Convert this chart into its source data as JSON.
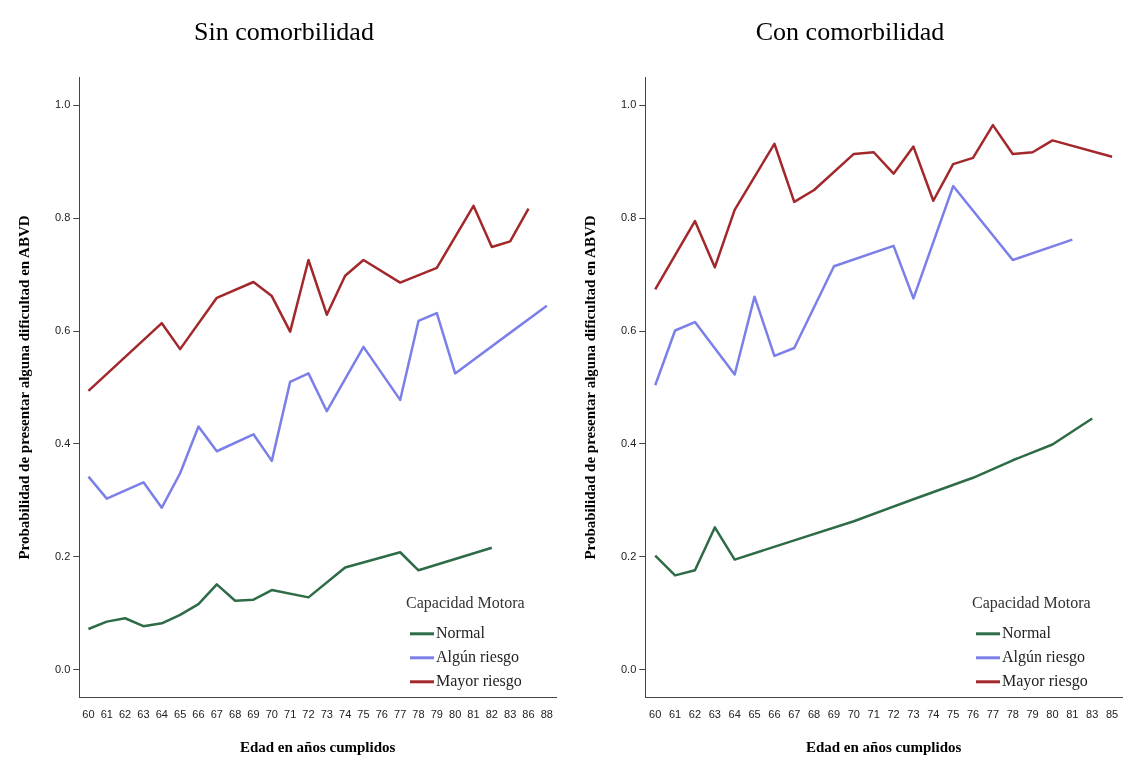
{
  "chart_data": [
    {
      "type": "line",
      "title": "Sin comorbilidad",
      "xlabel": "Edad en años cumplidos",
      "ylabel": "Probabilidad de presentar alguna dificultad en ABVD",
      "legend_title": "Capacidad Motora",
      "legend": "bottom right",
      "grid": false,
      "marker": "none",
      "categories": [
        "60",
        "61",
        "62",
        "63",
        "64",
        "65",
        "66",
        "67",
        "68",
        "69",
        "70",
        "71",
        "72",
        "73",
        "74",
        "75",
        "76",
        "77",
        "78",
        "79",
        "80",
        "81",
        "82",
        "83",
        "86",
        "88"
      ],
      "ylim": [
        -0.05,
        1.05
      ],
      "yticks": [
        {
          "value": 0,
          "label": "0.0"
        },
        {
          "value": 0.2,
          "label": "0.2"
        },
        {
          "value": 0.4,
          "label": "0.4"
        },
        {
          "value": 0.6,
          "label": "0.6"
        },
        {
          "value": 0.8,
          "label": "0.8"
        },
        {
          "value": 1,
          "label": "1.0"
        }
      ],
      "series": [
        {
          "name": "Normal",
          "color": "#2e6b47",
          "values": [
            0.072,
            0.085,
            0.091,
            0.077,
            0.082,
            0.097,
            0.116,
            0.151,
            0.122,
            0.124,
            0.141,
            null,
            0.128,
            null,
            0.181,
            null,
            null,
            0.208,
            0.176,
            null,
            null,
            null,
            0.216,
            null,
            null,
            null
          ]
        },
        {
          "name": "Algún riesgo",
          "color": "#7b7fe8",
          "values": [
            0.342,
            0.303,
            null,
            0.332,
            0.287,
            0.348,
            0.431,
            0.387,
            null,
            0.417,
            0.37,
            0.51,
            0.525,
            0.458,
            null,
            0.572,
            null,
            0.478,
            0.618,
            0.632,
            0.525,
            null,
            null,
            null,
            null,
            0.645
          ]
        },
        {
          "name": "Mayor riesgo",
          "color": "#a3282c",
          "values": [
            0.494,
            null,
            null,
            null,
            0.614,
            0.568,
            null,
            0.659,
            null,
            0.687,
            0.662,
            0.599,
            0.726,
            0.629,
            0.698,
            0.726,
            null,
            0.686,
            null,
            0.712,
            null,
            0.822,
            0.749,
            0.759,
            0.817,
            null
          ]
        }
      ]
    },
    {
      "type": "line",
      "title": "Con comorbilidad",
      "xlabel": "Edad en años cumplidos",
      "ylabel": "Probabilidad de presentar alguna dificultad en ABVD",
      "legend_title": "Capacidad Motora",
      "legend": "bottom right",
      "grid": false,
      "marker": "none",
      "categories": [
        "60",
        "61",
        "62",
        "63",
        "64",
        "65",
        "66",
        "67",
        "68",
        "69",
        "70",
        "71",
        "72",
        "73",
        "74",
        "75",
        "76",
        "77",
        "78",
        "79",
        "80",
        "81",
        "83",
        "85"
      ],
      "ylim": [
        -0.05,
        1.05
      ],
      "yticks": [
        {
          "value": 0,
          "label": "0.0"
        },
        {
          "value": 0.2,
          "label": "0.2"
        },
        {
          "value": 0.4,
          "label": "0.4"
        },
        {
          "value": 0.6,
          "label": "0.6"
        },
        {
          "value": 0.8,
          "label": "0.8"
        },
        {
          "value": 1,
          "label": "1.0"
        }
      ],
      "series": [
        {
          "name": "Normal",
          "color": "#2e6b47",
          "values": [
            0.202,
            0.167,
            0.176,
            0.252,
            0.195,
            null,
            null,
            0.229,
            null,
            null,
            0.263,
            null,
            null,
            0.302,
            null,
            null,
            0.34,
            null,
            0.371,
            null,
            0.399,
            null,
            0.445,
            null
          ]
        },
        {
          "name": "Algún riesgo",
          "color": "#7b7fe8",
          "values": [
            0.504,
            0.601,
            0.616,
            null,
            0.523,
            0.661,
            0.556,
            0.57,
            null,
            0.715,
            null,
            null,
            0.751,
            0.658,
            null,
            0.857,
            null,
            null,
            0.726,
            null,
            null,
            0.762,
            null,
            null
          ]
        },
        {
          "name": "Mayor riesgo",
          "color": "#a3282c",
          "values": [
            0.674,
            null,
            0.795,
            0.713,
            0.815,
            null,
            0.932,
            0.829,
            0.85,
            null,
            0.914,
            0.917,
            0.879,
            0.927,
            0.831,
            0.896,
            0.907,
            0.965,
            0.914,
            0.917,
            0.938,
            null,
            null,
            0.909
          ]
        }
      ]
    }
  ]
}
